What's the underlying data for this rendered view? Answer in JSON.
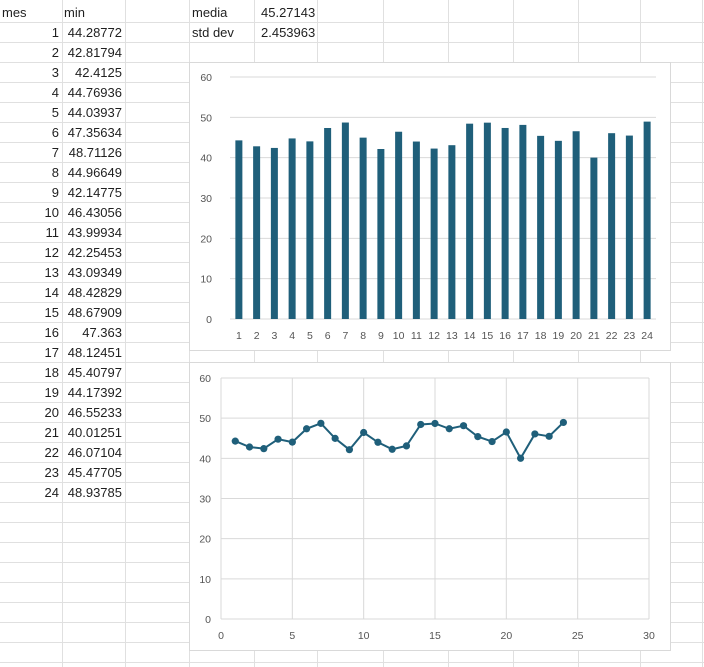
{
  "sheet": {
    "headers": {
      "col_a": "mes",
      "col_b": "min"
    },
    "stats": [
      {
        "label": "media",
        "value": "45.27143"
      },
      {
        "label": "std dev",
        "value": "2.453963"
      }
    ],
    "rows": [
      {
        "mes": "1",
        "min": "44.28772"
      },
      {
        "mes": "2",
        "min": "42.81794"
      },
      {
        "mes": "3",
        "min": "42.4125"
      },
      {
        "mes": "4",
        "min": "44.76936"
      },
      {
        "mes": "5",
        "min": "44.03937"
      },
      {
        "mes": "6",
        "min": "47.35634"
      },
      {
        "mes": "7",
        "min": "48.71126"
      },
      {
        "mes": "8",
        "min": "44.96649"
      },
      {
        "mes": "9",
        "min": "42.14775"
      },
      {
        "mes": "10",
        "min": "46.43056"
      },
      {
        "mes": "11",
        "min": "43.99934"
      },
      {
        "mes": "12",
        "min": "42.25453"
      },
      {
        "mes": "13",
        "min": "43.09349"
      },
      {
        "mes": "14",
        "min": "48.42829"
      },
      {
        "mes": "15",
        "min": "48.67909"
      },
      {
        "mes": "16",
        "min": "47.363"
      },
      {
        "mes": "17",
        "min": "48.12451"
      },
      {
        "mes": "18",
        "min": "45.40797"
      },
      {
        "mes": "19",
        "min": "44.17392"
      },
      {
        "mes": "20",
        "min": "46.55233"
      },
      {
        "mes": "21",
        "min": "40.01251"
      },
      {
        "mes": "22",
        "min": "46.07104"
      },
      {
        "mes": "23",
        "min": "45.47705"
      },
      {
        "mes": "24",
        "min": "48.93785"
      }
    ]
  },
  "colors": {
    "series": "#1f5f7a",
    "gridline": "#d9d9d9",
    "cell_border": "#e0e0e0"
  },
  "chart_data": [
    {
      "type": "bar",
      "categories": [
        "1",
        "2",
        "3",
        "4",
        "5",
        "6",
        "7",
        "8",
        "9",
        "10",
        "11",
        "12",
        "13",
        "14",
        "15",
        "16",
        "17",
        "18",
        "19",
        "20",
        "21",
        "22",
        "23",
        "24"
      ],
      "values": [
        44.28772,
        42.81794,
        42.4125,
        44.76936,
        44.03937,
        47.35634,
        48.71126,
        44.96649,
        42.14775,
        46.43056,
        43.99934,
        42.25453,
        43.09349,
        48.42829,
        48.67909,
        47.363,
        48.12451,
        45.40797,
        44.17392,
        46.55233,
        40.01251,
        46.07104,
        45.47705,
        48.93785
      ],
      "yticks": [
        "0",
        "10",
        "20",
        "30",
        "40",
        "50",
        "60"
      ],
      "ylim": [
        0,
        60
      ],
      "grid": true,
      "legend": "none"
    },
    {
      "type": "scatter",
      "x": [
        1,
        2,
        3,
        4,
        5,
        6,
        7,
        8,
        9,
        10,
        11,
        12,
        13,
        14,
        15,
        16,
        17,
        18,
        19,
        20,
        21,
        22,
        23,
        24
      ],
      "y": [
        44.28772,
        42.81794,
        42.4125,
        44.76936,
        44.03937,
        47.35634,
        48.71126,
        44.96649,
        42.14775,
        46.43056,
        43.99934,
        42.25453,
        43.09349,
        48.42829,
        48.67909,
        47.363,
        48.12451,
        45.40797,
        44.17392,
        46.55233,
        40.01251,
        46.07104,
        45.47705,
        48.93785
      ],
      "lines_and_markers": true,
      "xticks": [
        "0",
        "5",
        "10",
        "15",
        "20",
        "25",
        "30"
      ],
      "yticks": [
        "0",
        "10",
        "20",
        "30",
        "40",
        "50",
        "60"
      ],
      "xlim": [
        0,
        30
      ],
      "ylim": [
        0,
        60
      ],
      "grid": true,
      "legend": "none"
    }
  ]
}
